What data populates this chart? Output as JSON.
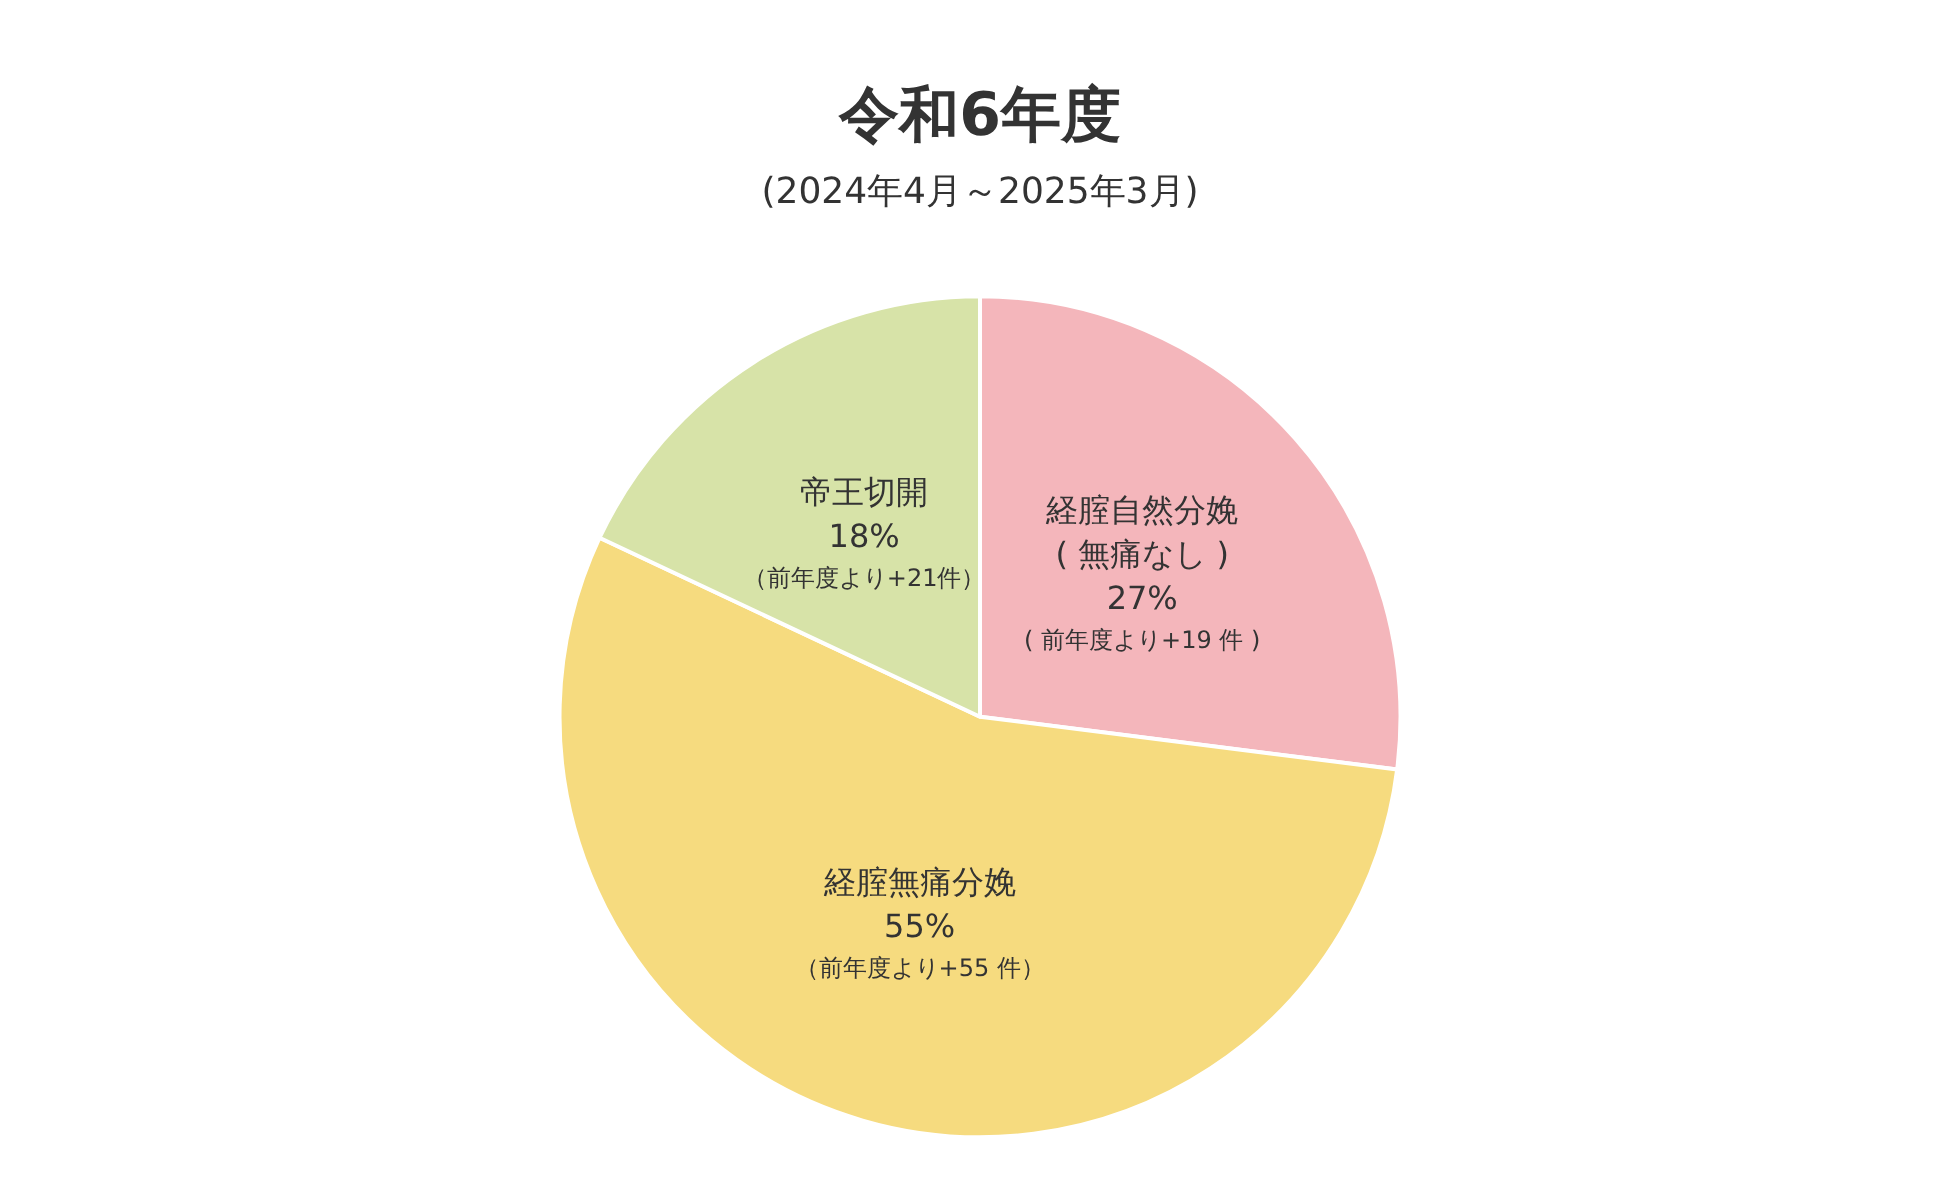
{
  "chart_data": {
    "type": "pie",
    "title": "令和6年度",
    "subtitle": "(2024年4月～2025年3月)",
    "categories": [
      "経腟自然分娩\n( 無痛なし )",
      "経腟無痛分娩",
      "帝王切開"
    ],
    "values": [
      27,
      55,
      18
    ],
    "colors": [
      "#f4b6bb",
      "#f6db7f",
      "#d7e3a8"
    ],
    "value_labels": [
      "27%",
      "55%",
      "18%"
    ],
    "annotations": [
      "( 前年度より+19 件 )",
      "（前年度より+55 件）",
      "（前年度より+21件）"
    ],
    "legend": false
  }
}
